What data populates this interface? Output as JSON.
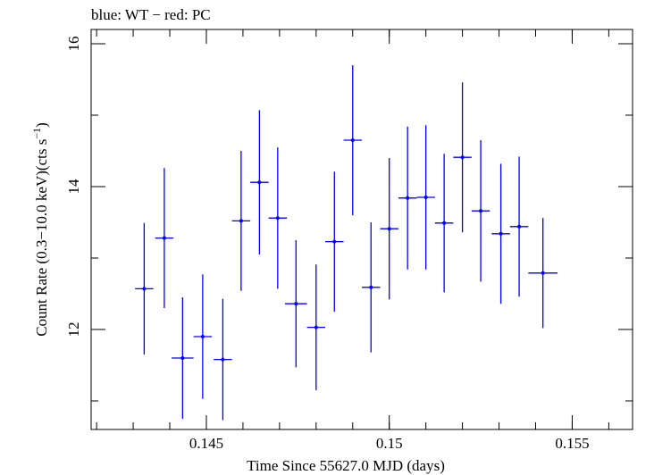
{
  "chart_data": {
    "type": "scatter",
    "title": "blue: WT − red: PC",
    "xlabel": "Time Since 55627.0 MJD (days)",
    "ylabel_main": "Count Rate (0.3−10.0 keV)(cts s",
    "ylabel_sup": "−1",
    "ylabel_close": ")",
    "xlim": [
      0.14185,
      0.15665
    ],
    "ylim": [
      10.6,
      16.2
    ],
    "x_ticks": [
      {
        "value": 0.145,
        "label": "0.145"
      },
      {
        "value": 0.15,
        "label": "0.15"
      },
      {
        "value": 0.155,
        "label": "0.155"
      }
    ],
    "y_ticks": [
      {
        "value": 12,
        "label": "12"
      },
      {
        "value": 14,
        "label": "14"
      },
      {
        "value": 16,
        "label": "16"
      }
    ],
    "x_minor_step": 0.001,
    "y_minor_step": 1,
    "grid": false,
    "colors": {
      "series": "#0000ff",
      "axes": "#000000"
    },
    "series": [
      {
        "points": [
          {
            "x": 0.1433,
            "xerr": 0.00025,
            "y": 12.57,
            "yerr": 0.92
          },
          {
            "x": 0.14385,
            "xerr": 0.00025,
            "y": 13.28,
            "yerr": 0.98
          },
          {
            "x": 0.14435,
            "xerr": 0.0003,
            "y": 11.6,
            "yerr": 0.85
          },
          {
            "x": 0.1449,
            "xerr": 0.00025,
            "y": 11.9,
            "yerr": 0.87
          },
          {
            "x": 0.14545,
            "xerr": 0.00025,
            "y": 11.58,
            "yerr": 0.85
          },
          {
            "x": 0.14595,
            "xerr": 0.00025,
            "y": 13.52,
            "yerr": 0.98
          },
          {
            "x": 0.14645,
            "xerr": 0.00025,
            "y": 14.06,
            "yerr": 1.01
          },
          {
            "x": 0.14695,
            "xerr": 0.00025,
            "y": 13.56,
            "yerr": 0.99
          },
          {
            "x": 0.14745,
            "xerr": 0.0003,
            "y": 12.36,
            "yerr": 0.89
          },
          {
            "x": 0.148,
            "xerr": 0.00025,
            "y": 12.03,
            "yerr": 0.88
          },
          {
            "x": 0.1485,
            "xerr": 0.00025,
            "y": 13.23,
            "yerr": 0.98
          },
          {
            "x": 0.149,
            "xerr": 0.00025,
            "y": 14.65,
            "yerr": 1.05
          },
          {
            "x": 0.1495,
            "xerr": 0.00025,
            "y": 12.59,
            "yerr": 0.91
          },
          {
            "x": 0.15,
            "xerr": 0.00025,
            "y": 13.41,
            "yerr": 0.99
          },
          {
            "x": 0.1505,
            "xerr": 0.00025,
            "y": 13.84,
            "yerr": 1.0
          },
          {
            "x": 0.151,
            "xerr": 0.00025,
            "y": 13.85,
            "yerr": 1.01
          },
          {
            "x": 0.1515,
            "xerr": 0.00025,
            "y": 13.49,
            "yerr": 0.97
          },
          {
            "x": 0.152,
            "xerr": 0.00025,
            "y": 14.41,
            "yerr": 1.05
          },
          {
            "x": 0.1525,
            "xerr": 0.00025,
            "y": 13.66,
            "yerr": 0.99
          },
          {
            "x": 0.15305,
            "xerr": 0.00025,
            "y": 13.34,
            "yerr": 0.98
          },
          {
            "x": 0.15355,
            "xerr": 0.00025,
            "y": 13.44,
            "yerr": 0.98
          },
          {
            "x": 0.1542,
            "xerr": 0.0004,
            "y": 12.79,
            "yerr": 0.77
          }
        ]
      }
    ]
  }
}
